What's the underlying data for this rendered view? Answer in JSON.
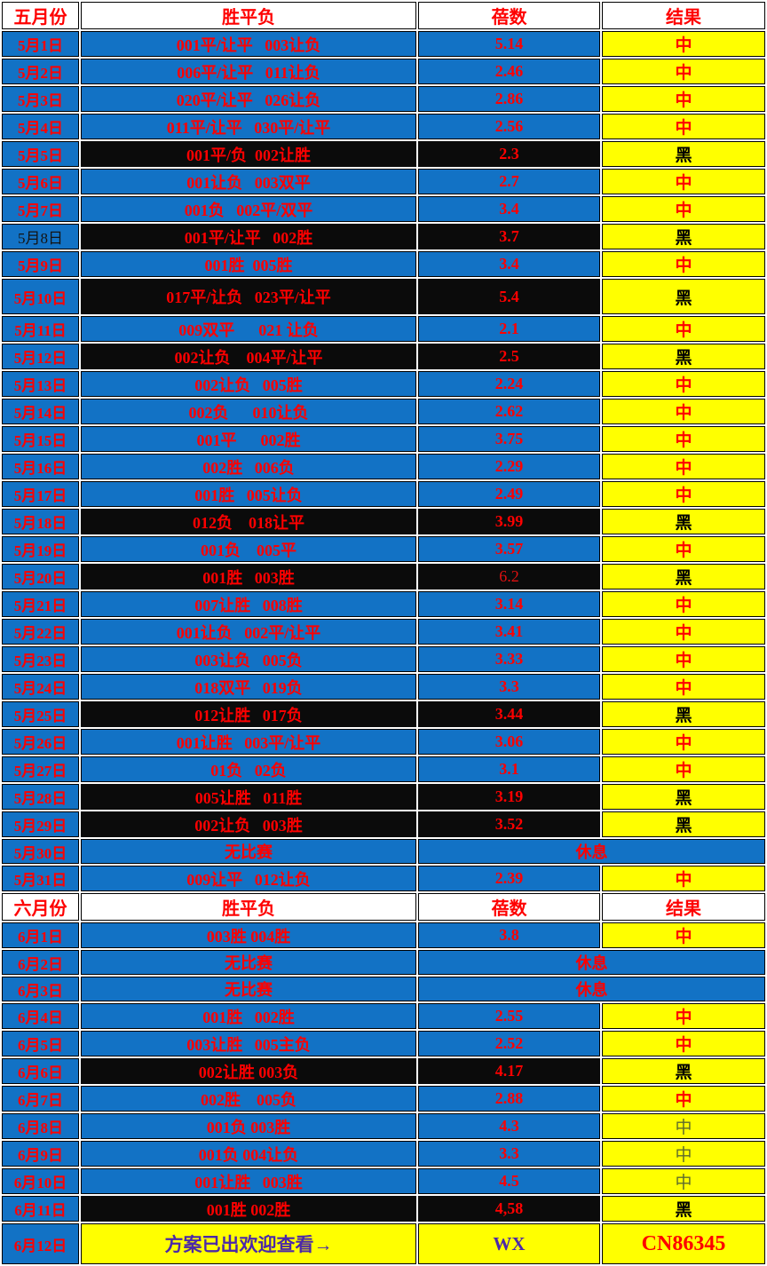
{
  "colors": {
    "row_blue": "#1272c5",
    "stripe_black": "#0b0b0b",
    "result_yellow": "#ffff00",
    "text_red": "#fe0000",
    "result_olive": "#5d6b2d",
    "promo_purple": "#4b28a8",
    "grid_white": "#ffffff"
  },
  "sections": [
    {
      "header": {
        "month": "五月份",
        "picks": "胜平负",
        "odds": "蓓数",
        "result": "结果"
      },
      "rows": [
        {
          "date": "5月1日",
          "picks": "001平/让平   003让负",
          "odds": "5.14",
          "result": "中",
          "variant": "blue"
        },
        {
          "date": "5月2日",
          "picks": "006平/让平   011让负",
          "odds": "2.46",
          "result": "中",
          "variant": "blue"
        },
        {
          "date": "5月3日",
          "picks": "020平/让平   026让负",
          "odds": "2.86",
          "result": "中",
          "variant": "blue"
        },
        {
          "date": "5月4日",
          "picks": "011平/让平   030平/让平",
          "odds": "2.56",
          "result": "中",
          "variant": "blue"
        },
        {
          "date": "5月5日",
          "picks": "001平/负  002让胜",
          "odds": "2.3",
          "result": "黑",
          "variant": "black"
        },
        {
          "date": "5月6日",
          "picks": "001让负   003双平",
          "odds": "2.7",
          "result": "中",
          "variant": "blue"
        },
        {
          "date": "5月7日",
          "picks": "001负   002平/双平",
          "odds": "3.4",
          "result": "中",
          "variant": "blue"
        },
        {
          "date": "5月8日",
          "picks": "001平/让平   002胜",
          "odds": "3.7",
          "result": "黑",
          "variant": "black",
          "date_ink": "black"
        },
        {
          "date": "5月9日",
          "picks": "001胜  005胜",
          "odds": "3.4",
          "result": "中",
          "variant": "blue"
        },
        {
          "date": "5月10日",
          "picks": "017平/让负   023平/让平",
          "odds": "5.4",
          "result": "黑",
          "variant": "black",
          "tall": true
        },
        {
          "date": "5月11日",
          "picks": "009双平      021 让负",
          "odds": "2.1",
          "result": "中",
          "variant": "blue"
        },
        {
          "date": "5月12日",
          "picks": "002让负    004平/让平",
          "odds": "2.5",
          "result": "黑",
          "variant": "black"
        },
        {
          "date": "5月13日",
          "picks": "002让负   005胜",
          "odds": "2.24",
          "result": "中",
          "variant": "blue"
        },
        {
          "date": "5月14日",
          "picks": "002负      010让负",
          "odds": "2.62",
          "result": "中",
          "variant": "blue"
        },
        {
          "date": "5月15日",
          "picks": "001平      002胜",
          "odds": "3.75",
          "result": "中",
          "variant": "blue"
        },
        {
          "date": "5月16日",
          "picks": "002胜   006负",
          "odds": "2.29",
          "result": "中",
          "variant": "blue"
        },
        {
          "date": "5月17日",
          "picks": "001胜   005让负",
          "odds": "2.49",
          "result": "中",
          "variant": "blue"
        },
        {
          "date": "5月18日",
          "picks": "012负    018让平",
          "odds": "3.99",
          "result": "黑",
          "variant": "black"
        },
        {
          "date": "5月19日",
          "picks": "001负    005平",
          "odds": "3.57",
          "result": "中",
          "variant": "blue"
        },
        {
          "date": "5月20日",
          "picks": "001胜   003胜",
          "odds": "6.2",
          "result": "黑",
          "variant": "black",
          "odds_weight": "normal"
        },
        {
          "date": "5月21日",
          "picks": "007让胜   008胜",
          "odds": "3.14",
          "result": "中",
          "variant": "blue"
        },
        {
          "date": "5月22日",
          "picks": "001让负   002平/让平",
          "odds": "3.41",
          "result": "中",
          "variant": "blue"
        },
        {
          "date": "5月23日",
          "picks": "003让负   005负",
          "odds": "3.33",
          "result": "中",
          "variant": "blue"
        },
        {
          "date": "5月24日",
          "picks": "018双平   019负",
          "odds": "3.3",
          "result": "中",
          "variant": "blue"
        },
        {
          "date": "5月25日",
          "picks": "012让胜   017负",
          "odds": "3.44",
          "result": "黑",
          "variant": "black"
        },
        {
          "date": "5月26日",
          "picks": "001让胜   003平/让平",
          "odds": "3.06",
          "result": "中",
          "variant": "blue"
        },
        {
          "date": "5月27日",
          "picks": "01负   02负",
          "odds": "3.1",
          "result": "中",
          "variant": "blue"
        },
        {
          "date": "5月28日",
          "picks": "005让胜   011胜",
          "odds": "3.19",
          "result": "黑",
          "variant": "black"
        },
        {
          "date": "5月29日",
          "picks": "002让负   003胜",
          "odds": "3.52",
          "result": "黑",
          "variant": "black"
        },
        {
          "date": "5月30日",
          "picks": "无比赛",
          "rest": "休息",
          "variant": "rest"
        },
        {
          "date": "5月31日",
          "picks": "009让平   012让负",
          "odds": "2.39",
          "result": "中",
          "variant": "blue"
        }
      ]
    },
    {
      "header": {
        "month": "六月份",
        "picks": "胜平负",
        "odds": "蓓数",
        "result": "结果"
      },
      "rows": [
        {
          "date": "6月1日",
          "picks": "003胜 004胜",
          "odds": "3.8",
          "result": "中",
          "variant": "blue"
        },
        {
          "date": "6月2日",
          "picks": "无比赛",
          "rest": "休息",
          "variant": "rest"
        },
        {
          "date": "6月3日",
          "picks": "无比赛",
          "rest": "休息",
          "variant": "rest"
        },
        {
          "date": "6月4日",
          "picks": "001胜   002胜",
          "odds": "2.55",
          "result": "中",
          "variant": "blue"
        },
        {
          "date": "6月5日",
          "picks": "003让胜   005主负",
          "odds": "2.52",
          "result": "中",
          "variant": "blue"
        },
        {
          "date": "6月6日",
          "picks": "002让胜 003负",
          "odds": "4.17",
          "result": "黑",
          "variant": "black"
        },
        {
          "date": "6月7日",
          "picks": "002胜    005负",
          "odds": "2.88",
          "result": "中",
          "variant": "blue"
        },
        {
          "date": "6月8日",
          "picks": "001负 003胜",
          "odds": "4.3",
          "result": "中",
          "variant": "blue",
          "result_ink": "olive"
        },
        {
          "date": "6月9日",
          "picks": "001负 004让负",
          "odds": "3.3",
          "result": "中",
          "variant": "blue",
          "result_ink": "olive"
        },
        {
          "date": "6月10日",
          "picks": "001让胜   003胜",
          "odds": "4.5",
          "result": "中",
          "variant": "blue",
          "result_ink": "olive"
        },
        {
          "date": "6月11日",
          "picks": "001胜 002胜",
          "odds": "4,58",
          "result": "黑",
          "variant": "black"
        },
        {
          "date": "6月12日",
          "picks": "方案已出欢迎查看→",
          "odds": "WX",
          "result": "CN86345",
          "variant": "promo"
        }
      ]
    }
  ]
}
